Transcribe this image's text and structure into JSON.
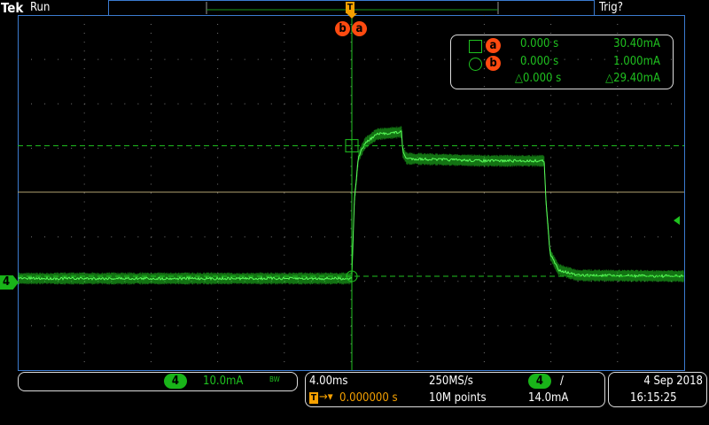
{
  "header": {
    "brand": "Tek",
    "run_state": "Run",
    "trigger_status": "Trig?"
  },
  "markers": {
    "cursor_a": "a",
    "cursor_b": "b",
    "trigger": "T",
    "channel": "4"
  },
  "cursor_readout": {
    "a": {
      "label": "a",
      "time": "0.000 s",
      "value": "30.40mA"
    },
    "b": {
      "label": "b",
      "time": "0.000 s",
      "value": "1.000mA"
    },
    "delta": {
      "time": "△0.000 s",
      "value": "△29.40mA"
    }
  },
  "channel_box": {
    "channel": "4",
    "scale": "10.0mA",
    "bw_label": "BW"
  },
  "horizontal_box": {
    "time_per_div": "4.00ms",
    "sample_rate": "250MS/s",
    "trigger_channel": "4",
    "trigger_slope": "/",
    "trigger_position": "0.000000 s",
    "record_length": "10M points",
    "trigger_level": "14.0mA"
  },
  "datetime": {
    "date": "4 Sep  2018",
    "time": "16:15:25"
  },
  "colors": {
    "trace": "#22d022",
    "cursor": "#ff4a10",
    "trigger": "#f5a000",
    "frame": "#3b7bd0",
    "grid": "#b0a070"
  },
  "waveform": {
    "time_unit": "ms",
    "value_unit": "mA",
    "time_per_div": 4,
    "value_per_div": 10,
    "points": [
      [
        -20,
        0.5
      ],
      [
        -0.1,
        0.5
      ],
      [
        0,
        1
      ],
      [
        0.15,
        18
      ],
      [
        0.4,
        28
      ],
      [
        0.8,
        31
      ],
      [
        1.5,
        33
      ],
      [
        3.0,
        33.5
      ],
      [
        3.05,
        29
      ],
      [
        3.3,
        27.5
      ],
      [
        8,
        27
      ],
      [
        11.55,
        27
      ],
      [
        11.65,
        18
      ],
      [
        11.9,
        6
      ],
      [
        12.4,
        2.5
      ],
      [
        13.5,
        1.2
      ],
      [
        20,
        1
      ]
    ]
  }
}
